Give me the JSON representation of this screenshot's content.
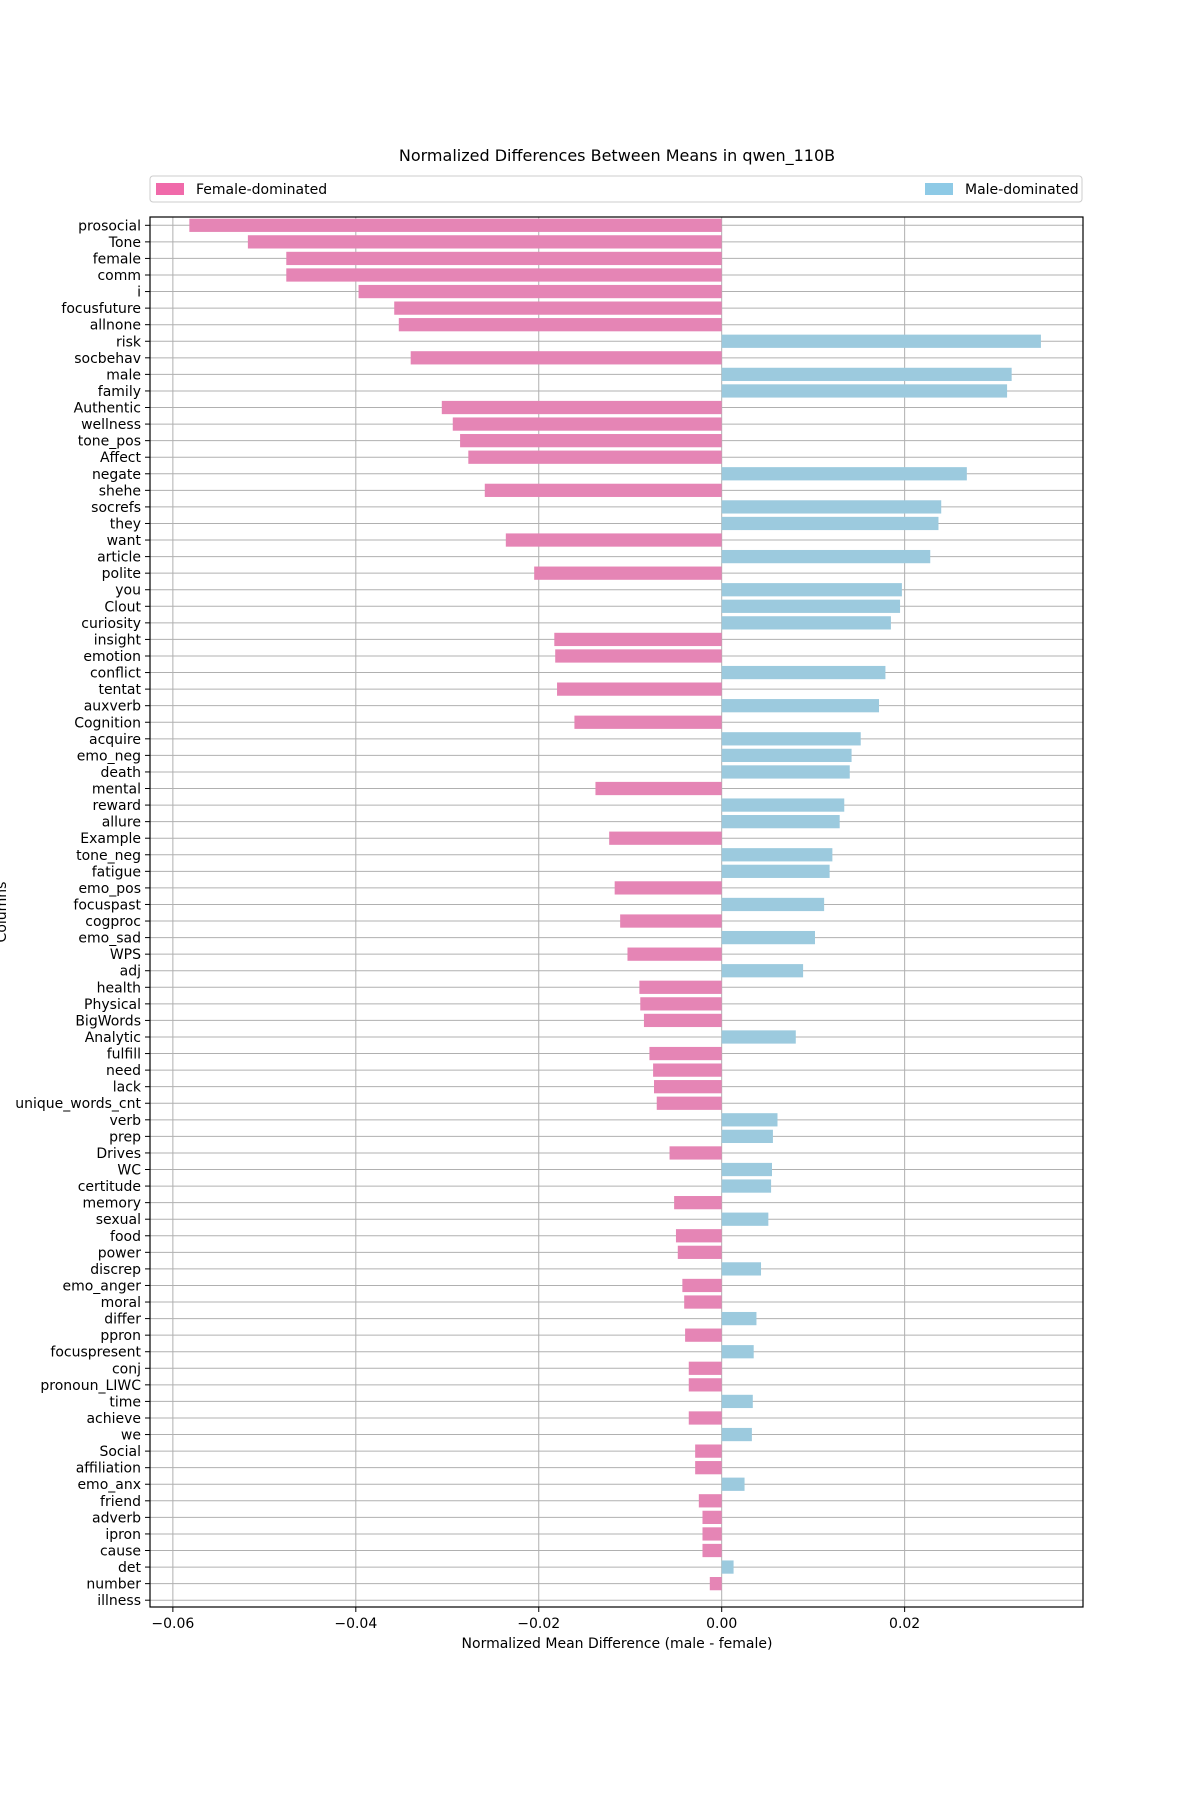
{
  "chart_data": {
    "type": "bar",
    "orientation": "horizontal",
    "title": "Normalized Differences Between Means in qwen_110B",
    "xlabel": "Normalized Mean Difference (male - female)",
    "ylabel": "Columns",
    "xlim": [
      -0.0625,
      0.0395
    ],
    "xticks": [
      -0.06,
      -0.04,
      -0.02,
      0.0,
      0.02
    ],
    "xtick_labels": [
      "−0.06",
      "−0.04",
      "−0.02",
      "0.00",
      "0.02"
    ],
    "grid": "vertical",
    "legend": {
      "placement": "top, above plot",
      "entries": [
        {
          "label": "Female-dominated",
          "color": "#f06aaa"
        },
        {
          "label": "Male-dominated",
          "color": "#8ecae6"
        }
      ]
    },
    "colors": {
      "female_bar": "#e585b5",
      "male_bar": "#9ccade"
    },
    "categories": [
      "prosocial",
      "Tone",
      "female",
      "comm",
      "i",
      "focusfuture",
      "allnone",
      "risk",
      "socbehav",
      "male",
      "family",
      "Authentic",
      "wellness",
      "tone_pos",
      "Affect",
      "negate",
      "shehe",
      "socrefs",
      "they",
      "want",
      "article",
      "polite",
      "you",
      "Clout",
      "curiosity",
      "insight",
      "emotion",
      "conflict",
      "tentat",
      "auxverb",
      "Cognition",
      "acquire",
      "emo_neg",
      "death",
      "mental",
      "reward",
      "allure",
      "Example",
      "tone_neg",
      "fatigue",
      "emo_pos",
      "focuspast",
      "cogproc",
      "emo_sad",
      "WPS",
      "adj",
      "health",
      "Physical",
      "BigWords",
      "Analytic",
      "fulfill",
      "need",
      "lack",
      "unique_words_cnt",
      "verb",
      "prep",
      "Drives",
      "WC",
      "certitude",
      "memory",
      "sexual",
      "food",
      "power",
      "discrep",
      "emo_anger",
      "moral",
      "differ",
      "ppron",
      "focuspresent",
      "conj",
      "pronoun_LIWC",
      "time",
      "achieve",
      "we",
      "Social",
      "affiliation",
      "emo_anx",
      "friend",
      "adverb",
      "ipron",
      "cause",
      "det",
      "number",
      "illness"
    ],
    "values": [
      -0.0582,
      -0.0518,
      -0.0476,
      -0.0476,
      -0.0397,
      -0.0358,
      -0.0353,
      0.0349,
      -0.034,
      0.0317,
      0.0312,
      -0.0306,
      -0.0294,
      -0.0286,
      -0.0277,
      0.0268,
      -0.0259,
      0.024,
      0.0237,
      -0.0236,
      0.0228,
      -0.0205,
      0.0197,
      0.0195,
      0.0185,
      -0.0183,
      -0.0182,
      0.0179,
      -0.018,
      0.0172,
      -0.0161,
      0.0152,
      0.0142,
      0.014,
      -0.0138,
      0.0134,
      0.0129,
      -0.0123,
      0.0121,
      0.0118,
      -0.0117,
      0.0112,
      -0.0111,
      0.0102,
      -0.0103,
      0.0089,
      -0.009,
      -0.0089,
      -0.0085,
      0.0081,
      -0.0079,
      -0.0075,
      -0.0074,
      -0.0071,
      0.0061,
      0.0056,
      -0.0057,
      0.0055,
      0.0054,
      -0.0052,
      0.0051,
      -0.005,
      -0.0048,
      0.0043,
      -0.0043,
      -0.0041,
      0.0038,
      -0.004,
      0.0035,
      -0.0036,
      -0.0036,
      0.0034,
      -0.0036,
      0.0033,
      -0.0029,
      -0.0029,
      0.0025,
      -0.0025,
      -0.0021,
      -0.0021,
      -0.0021,
      0.0013,
      -0.0013,
      0.0
    ]
  }
}
